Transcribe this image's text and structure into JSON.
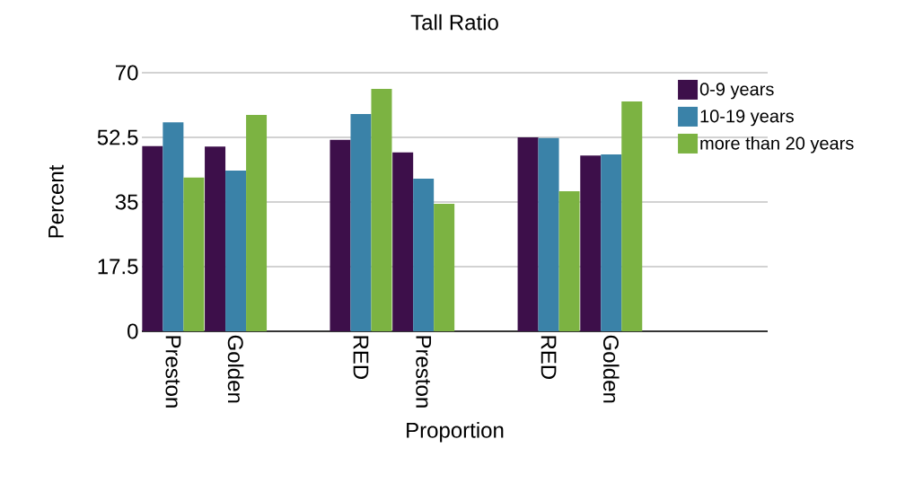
{
  "chart_data": {
    "type": "bar",
    "title": "Tall Ratio",
    "xlabel": "Proportion",
    "ylabel": "Percent",
    "categories": [
      "Preston",
      "Golden",
      null,
      "RED",
      "Preston",
      null,
      "RED",
      "Golden",
      null,
      null
    ],
    "series": [
      {
        "name": "0-9 years",
        "color": "#3d0f4a",
        "values": [
          50.1,
          50.0,
          null,
          51.8,
          48.4,
          null,
          52.5,
          47.6,
          null,
          null
        ]
      },
      {
        "name": "10-19 years",
        "color": "#3a82a8",
        "values": [
          56.6,
          43.5,
          null,
          58.8,
          41.3,
          null,
          52.3,
          47.9,
          null,
          null
        ]
      },
      {
        "name": "more than 20 years",
        "color": "#7cb342",
        "values": [
          41.6,
          58.6,
          null,
          65.6,
          34.5,
          null,
          37.9,
          62.2,
          null,
          null
        ]
      }
    ],
    "ylim": [
      0,
      70
    ],
    "yticks": [
      0,
      17.5,
      35,
      52.5,
      70
    ],
    "grid": "y",
    "legend": "top right"
  }
}
